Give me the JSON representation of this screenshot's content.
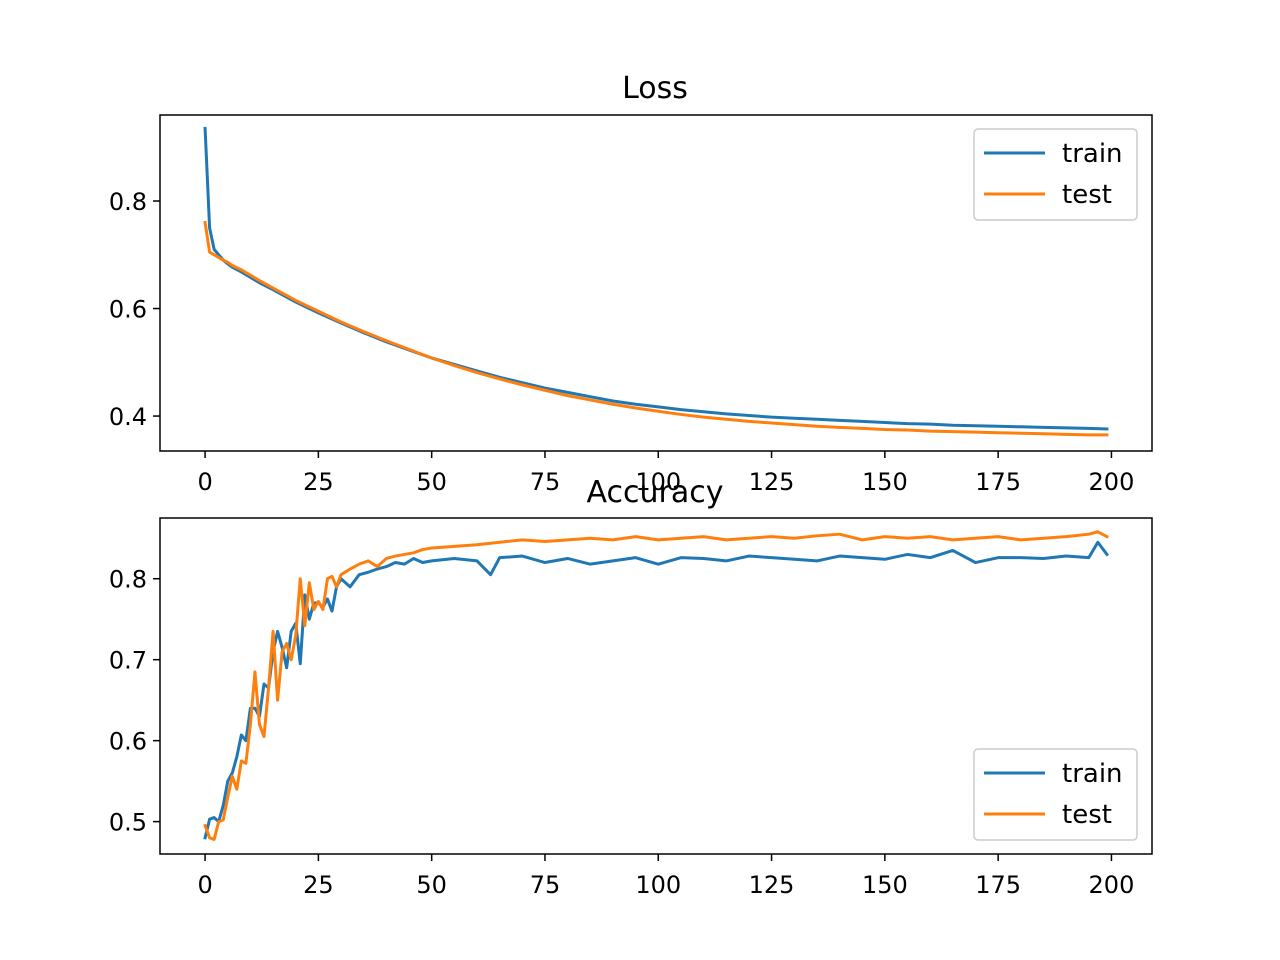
{
  "figure": {
    "background": "#ffffff"
  },
  "chart_data": [
    {
      "type": "line",
      "title": "Loss",
      "xlabel": "",
      "ylabel": "",
      "xlim": [
        -9.95,
        208.95
      ],
      "ylim": [
        0.335,
        0.96
      ],
      "xticks": [
        0,
        25,
        50,
        75,
        100,
        125,
        150,
        175,
        200
      ],
      "xtick_labels": [
        "0",
        "25",
        "50",
        "75",
        "100",
        "125",
        "150",
        "175",
        "200"
      ],
      "yticks": [
        0.4,
        0.6,
        0.8
      ],
      "ytick_labels": [
        "0.4",
        "0.6",
        "0.8"
      ],
      "legend_position": "top-right",
      "grid": false,
      "series": [
        {
          "name": "train",
          "color": "#1f77b4",
          "x": [
            0,
            1,
            2,
            3,
            4,
            5,
            6,
            8,
            10,
            12,
            15,
            20,
            25,
            30,
            35,
            40,
            45,
            50,
            55,
            60,
            65,
            70,
            75,
            80,
            85,
            90,
            95,
            100,
            105,
            110,
            115,
            120,
            125,
            130,
            135,
            140,
            145,
            150,
            155,
            160,
            165,
            170,
            175,
            180,
            185,
            190,
            195,
            199
          ],
          "values": [
            0.935,
            0.75,
            0.71,
            0.7,
            0.69,
            0.683,
            0.677,
            0.668,
            0.658,
            0.648,
            0.635,
            0.612,
            0.592,
            0.573,
            0.555,
            0.538,
            0.523,
            0.508,
            0.496,
            0.484,
            0.472,
            0.462,
            0.452,
            0.444,
            0.436,
            0.428,
            0.422,
            0.417,
            0.412,
            0.408,
            0.404,
            0.401,
            0.398,
            0.396,
            0.394,
            0.392,
            0.39,
            0.388,
            0.386,
            0.385,
            0.383,
            0.382,
            0.381,
            0.38,
            0.379,
            0.378,
            0.377,
            0.376
          ]
        },
        {
          "name": "test",
          "color": "#ff7f0e",
          "x": [
            0,
            1,
            2,
            3,
            4,
            5,
            6,
            8,
            10,
            12,
            15,
            20,
            25,
            30,
            35,
            40,
            45,
            50,
            55,
            60,
            65,
            70,
            75,
            80,
            85,
            90,
            95,
            100,
            105,
            110,
            115,
            120,
            125,
            130,
            135,
            140,
            145,
            150,
            155,
            160,
            165,
            170,
            175,
            180,
            185,
            190,
            195,
            199
          ],
          "values": [
            0.76,
            0.705,
            0.7,
            0.695,
            0.69,
            0.686,
            0.68,
            0.672,
            0.662,
            0.652,
            0.638,
            0.615,
            0.595,
            0.575,
            0.557,
            0.54,
            0.524,
            0.508,
            0.494,
            0.481,
            0.469,
            0.458,
            0.448,
            0.438,
            0.43,
            0.422,
            0.415,
            0.409,
            0.403,
            0.398,
            0.394,
            0.39,
            0.387,
            0.384,
            0.381,
            0.379,
            0.377,
            0.375,
            0.374,
            0.372,
            0.371,
            0.37,
            0.369,
            0.368,
            0.367,
            0.366,
            0.365,
            0.365
          ]
        }
      ]
    },
    {
      "type": "line",
      "title": "Accuracy",
      "xlabel": "",
      "ylabel": "",
      "xlim": [
        -9.95,
        208.95
      ],
      "ylim": [
        0.46,
        0.875
      ],
      "xticks": [
        0,
        25,
        50,
        75,
        100,
        125,
        150,
        175,
        200
      ],
      "xtick_labels": [
        "0",
        "25",
        "50",
        "75",
        "100",
        "125",
        "150",
        "175",
        "200"
      ],
      "yticks": [
        0.5,
        0.6,
        0.7,
        0.8
      ],
      "ytick_labels": [
        "0.5",
        "0.6",
        "0.7",
        "0.8"
      ],
      "legend_position": "bottom-right",
      "grid": false,
      "series": [
        {
          "name": "train",
          "color": "#1f77b4",
          "x": [
            0,
            1,
            2,
            3,
            4,
            5,
            6,
            7,
            8,
            9,
            10,
            11,
            12,
            13,
            14,
            15,
            16,
            17,
            18,
            19,
            20,
            21,
            22,
            23,
            24,
            25,
            26,
            27,
            28,
            29,
            30,
            32,
            34,
            36,
            38,
            40,
            42,
            44,
            46,
            48,
            50,
            55,
            60,
            63,
            65,
            70,
            75,
            80,
            85,
            90,
            95,
            100,
            105,
            110,
            115,
            120,
            125,
            130,
            135,
            140,
            145,
            150,
            155,
            160,
            165,
            170,
            175,
            180,
            185,
            190,
            195,
            197,
            199
          ],
          "values": [
            0.48,
            0.503,
            0.505,
            0.5,
            0.52,
            0.55,
            0.56,
            0.58,
            0.607,
            0.6,
            0.64,
            0.64,
            0.63,
            0.67,
            0.665,
            0.71,
            0.735,
            0.715,
            0.69,
            0.735,
            0.745,
            0.695,
            0.78,
            0.75,
            0.77,
            0.77,
            0.765,
            0.775,
            0.76,
            0.79,
            0.8,
            0.79,
            0.805,
            0.808,
            0.812,
            0.815,
            0.82,
            0.818,
            0.825,
            0.82,
            0.822,
            0.825,
            0.822,
            0.805,
            0.826,
            0.828,
            0.82,
            0.825,
            0.818,
            0.822,
            0.826,
            0.818,
            0.826,
            0.825,
            0.822,
            0.828,
            0.826,
            0.824,
            0.822,
            0.828,
            0.826,
            0.824,
            0.83,
            0.826,
            0.835,
            0.82,
            0.826,
            0.826,
            0.825,
            0.828,
            0.826,
            0.845,
            0.83
          ]
        },
        {
          "name": "test",
          "color": "#ff7f0e",
          "x": [
            0,
            1,
            2,
            3,
            4,
            5,
            6,
            7,
            8,
            9,
            10,
            11,
            12,
            13,
            14,
            15,
            16,
            17,
            18,
            19,
            20,
            21,
            22,
            23,
            24,
            25,
            26,
            27,
            28,
            29,
            30,
            32,
            34,
            36,
            38,
            40,
            42,
            44,
            46,
            48,
            50,
            55,
            60,
            65,
            70,
            75,
            80,
            85,
            90,
            95,
            100,
            105,
            110,
            115,
            120,
            125,
            130,
            135,
            140,
            145,
            150,
            155,
            160,
            165,
            170,
            175,
            180,
            185,
            190,
            195,
            197,
            199
          ],
          "values": [
            0.495,
            0.48,
            0.478,
            0.5,
            0.502,
            0.53,
            0.556,
            0.54,
            0.575,
            0.572,
            0.62,
            0.685,
            0.62,
            0.605,
            0.665,
            0.735,
            0.65,
            0.71,
            0.72,
            0.7,
            0.73,
            0.8,
            0.742,
            0.795,
            0.762,
            0.772,
            0.762,
            0.8,
            0.803,
            0.79,
            0.805,
            0.812,
            0.818,
            0.822,
            0.815,
            0.825,
            0.828,
            0.83,
            0.832,
            0.836,
            0.838,
            0.84,
            0.842,
            0.845,
            0.848,
            0.846,
            0.848,
            0.85,
            0.848,
            0.852,
            0.848,
            0.85,
            0.852,
            0.848,
            0.85,
            0.852,
            0.85,
            0.853,
            0.855,
            0.848,
            0.852,
            0.85,
            0.852,
            0.848,
            0.85,
            0.852,
            0.848,
            0.85,
            0.852,
            0.855,
            0.858,
            0.852
          ]
        }
      ]
    }
  ]
}
